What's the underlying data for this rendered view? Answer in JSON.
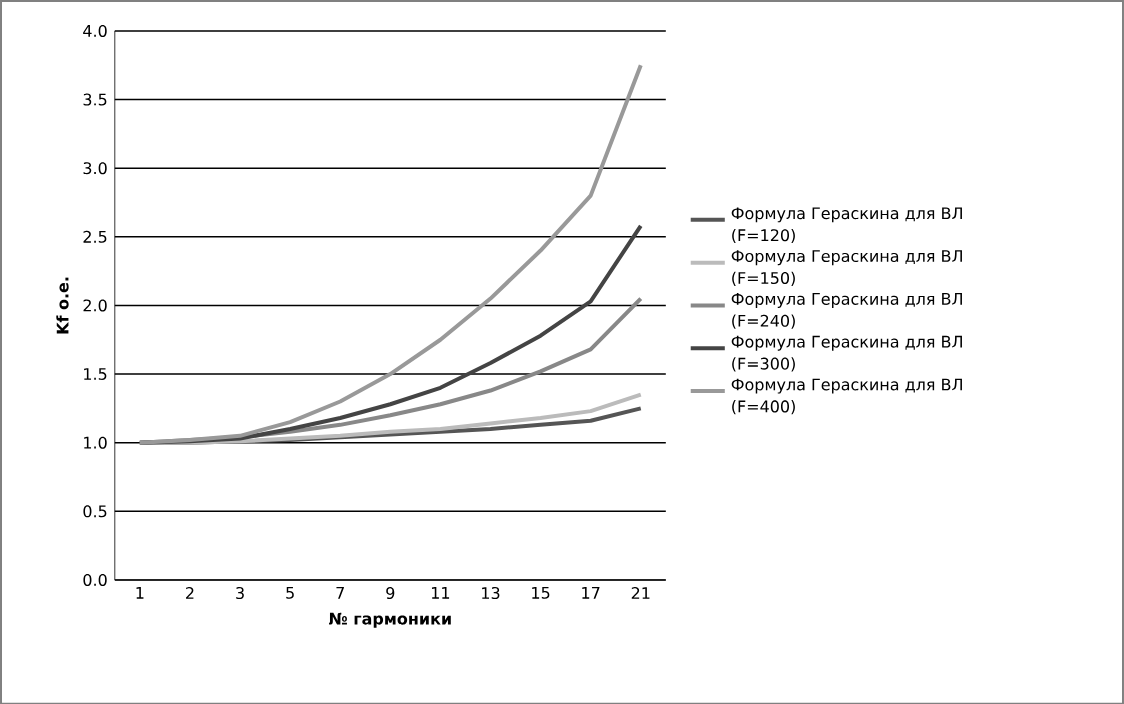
{
  "chart_data": {
    "type": "line",
    "xlabel": "№ гармоники",
    "ylabel": "Kf о.е.",
    "categories": [
      "1",
      "2",
      "3",
      "5",
      "7",
      "9",
      "11",
      "13",
      "15",
      "17",
      "21"
    ],
    "ylim": [
      0,
      4
    ],
    "yticks": [
      {
        "value": 0,
        "label": "0.0"
      },
      {
        "value": 0.5,
        "label": "0.5"
      },
      {
        "value": 1,
        "label": "1.0"
      },
      {
        "value": 1.5,
        "label": "1.5"
      },
      {
        "value": 2,
        "label": "2.0"
      },
      {
        "value": 2.5,
        "label": "2.5"
      },
      {
        "value": 3,
        "label": "3.0"
      },
      {
        "value": 3.5,
        "label": "3.5"
      },
      {
        "value": 4,
        "label": "4.0"
      }
    ],
    "grid": "y",
    "legend": "right",
    "marker": "none",
    "series": [
      {
        "name": "Формула Гераскина для ВЛ (F=120)",
        "color": "#555555",
        "values": [
          1.0,
          1.0,
          1.01,
          1.02,
          1.04,
          1.06,
          1.08,
          1.1,
          1.13,
          1.16,
          1.25
        ]
      },
      {
        "name": "Формула Гераскина для ВЛ (F=150)",
        "color": "#bbbbbb",
        "values": [
          1.0,
          1.0,
          1.01,
          1.03,
          1.05,
          1.08,
          1.1,
          1.14,
          1.18,
          1.23,
          1.35
        ]
      },
      {
        "name": "Формула Гераскина для ВЛ (F=240)",
        "color": "#888888",
        "values": [
          1.0,
          1.02,
          1.04,
          1.08,
          1.13,
          1.2,
          1.28,
          1.38,
          1.52,
          1.68,
          2.05
        ]
      },
      {
        "name": "Формула Гераскина для ВЛ (F=300)",
        "color": "#444444",
        "values": [
          1.0,
          1.01,
          1.03,
          1.1,
          1.18,
          1.28,
          1.4,
          1.58,
          1.78,
          2.03,
          2.58
        ]
      },
      {
        "name": "Формула Гераскина для ВЛ (F=400)",
        "color": "#999999",
        "values": [
          1.0,
          1.02,
          1.05,
          1.15,
          1.3,
          1.5,
          1.75,
          2.05,
          2.4,
          2.8,
          3.75
        ]
      }
    ]
  }
}
